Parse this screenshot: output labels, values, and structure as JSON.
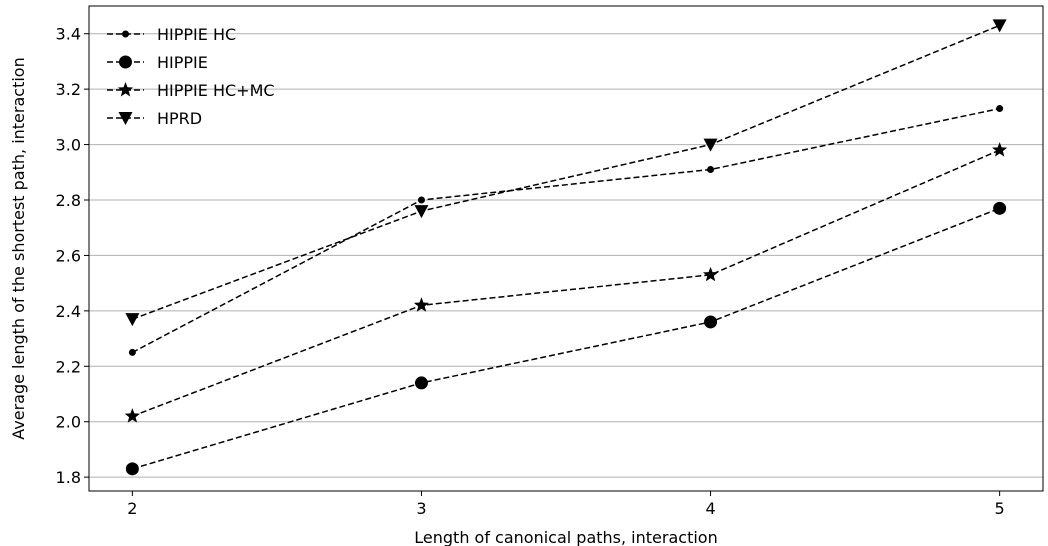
{
  "chart_data": {
    "type": "line",
    "title": "",
    "xlabel": "Length of canonical paths, interaction",
    "ylabel": "Average length of the shortest path, interaction",
    "x": [
      2,
      3,
      4,
      5
    ],
    "xlim": [
      1.85,
      5.15
    ],
    "ylim": [
      1.75,
      3.5
    ],
    "xticks": [
      "2",
      "3",
      "4",
      "5"
    ],
    "yticks": [
      "1.8",
      "2.0",
      "2.2",
      "2.4",
      "2.6",
      "2.8",
      "3.0",
      "3.2",
      "3.4"
    ],
    "grid": "horizontal",
    "legend_position": "top-left",
    "line_color": "#000000",
    "line_style": "dashed",
    "series": [
      {
        "name": "HIPPIE HC",
        "marker": "small-dot",
        "values": [
          2.25,
          2.8,
          2.91,
          3.13
        ]
      },
      {
        "name": "HIPPIE",
        "marker": "large-circle",
        "values": [
          1.83,
          2.14,
          2.36,
          2.77
        ]
      },
      {
        "name": "HIPPIE HC+MC",
        "marker": "star",
        "values": [
          2.02,
          2.42,
          2.53,
          2.98
        ]
      },
      {
        "name": "HPRD",
        "marker": "triangle-down",
        "values": [
          2.37,
          2.76,
          3.0,
          3.43
        ]
      }
    ]
  }
}
